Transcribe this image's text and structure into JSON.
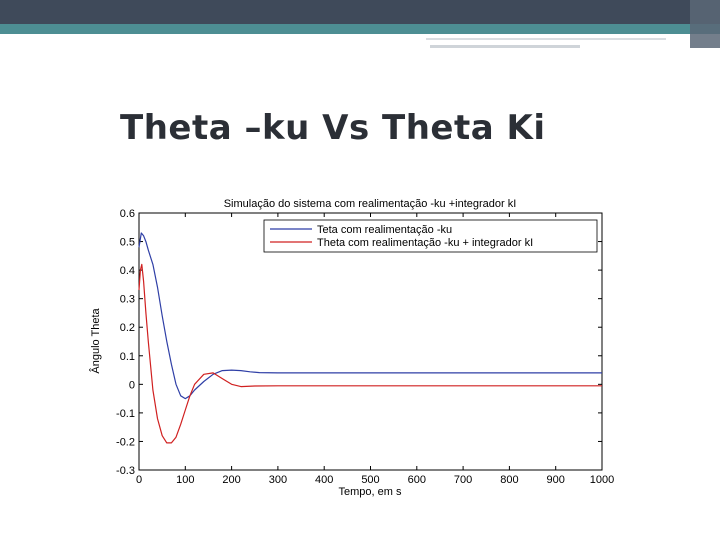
{
  "slide": {
    "title": "Theta –ku Vs Theta Ki"
  },
  "colors": {
    "top_bar": "#3f4a5a",
    "teal_bar": "#4d8e93",
    "series_blue": "#2f3fa6",
    "series_red": "#d02020"
  },
  "chart_data": {
    "type": "line",
    "title": "Simulação do sistema com realimentação -ku +integrador kI",
    "xlabel": "Tempo, em s",
    "ylabel": "Ângulo Theta",
    "xlim": [
      0,
      1000
    ],
    "ylim": [
      -0.3,
      0.6
    ],
    "xticks": [
      0,
      100,
      200,
      300,
      400,
      500,
      600,
      700,
      800,
      900,
      1000
    ],
    "yticks": [
      -0.3,
      -0.2,
      -0.1,
      0,
      0.1,
      0.2,
      0.3,
      0.4,
      0.5,
      0.6
    ],
    "xtick_labels": [
      "0",
      "100",
      "200",
      "300",
      "400",
      "500",
      "600",
      "700",
      "800",
      "900",
      "1000"
    ],
    "ytick_labels": [
      "-0.3",
      "-0.2",
      "-0.1",
      "0",
      "0.1",
      "0.2",
      "0.3",
      "0.4",
      "0.5",
      "0.6"
    ],
    "grid": false,
    "legend_position": "top-right",
    "series": [
      {
        "name": "Teta com realimentação -ku",
        "color": "#2f3fa6",
        "x": [
          0,
          5,
          10,
          15,
          20,
          30,
          40,
          50,
          60,
          70,
          80,
          90,
          100,
          110,
          120,
          140,
          160,
          180,
          200,
          220,
          240,
          260,
          300,
          350,
          400,
          500,
          600,
          700,
          800,
          900,
          1000
        ],
        "y": [
          0.48,
          0.53,
          0.52,
          0.5,
          0.47,
          0.42,
          0.34,
          0.24,
          0.15,
          0.07,
          0.0,
          -0.04,
          -0.05,
          -0.04,
          -0.02,
          0.01,
          0.035,
          0.048,
          0.05,
          0.048,
          0.044,
          0.041,
          0.04,
          0.04,
          0.04,
          0.04,
          0.04,
          0.04,
          0.04,
          0.04,
          0.04
        ]
      },
      {
        "name": "Theta com realimentação -ku + integrador kI",
        "color": "#d02020",
        "x": [
          0,
          3,
          6,
          10,
          15,
          20,
          30,
          40,
          50,
          60,
          70,
          80,
          90,
          100,
          110,
          120,
          140,
          160,
          180,
          200,
          220,
          250,
          300,
          400,
          500,
          600,
          700,
          800,
          900,
          1000
        ],
        "y": [
          0.33,
          0.4,
          0.42,
          0.36,
          0.25,
          0.15,
          -0.02,
          -0.12,
          -0.18,
          -0.205,
          -0.205,
          -0.185,
          -0.14,
          -0.09,
          -0.04,
          0.0,
          0.035,
          0.04,
          0.02,
          0.0,
          -0.008,
          -0.006,
          -0.005,
          -0.005,
          -0.005,
          -0.005,
          -0.005,
          -0.005,
          -0.005,
          -0.005
        ]
      }
    ]
  }
}
